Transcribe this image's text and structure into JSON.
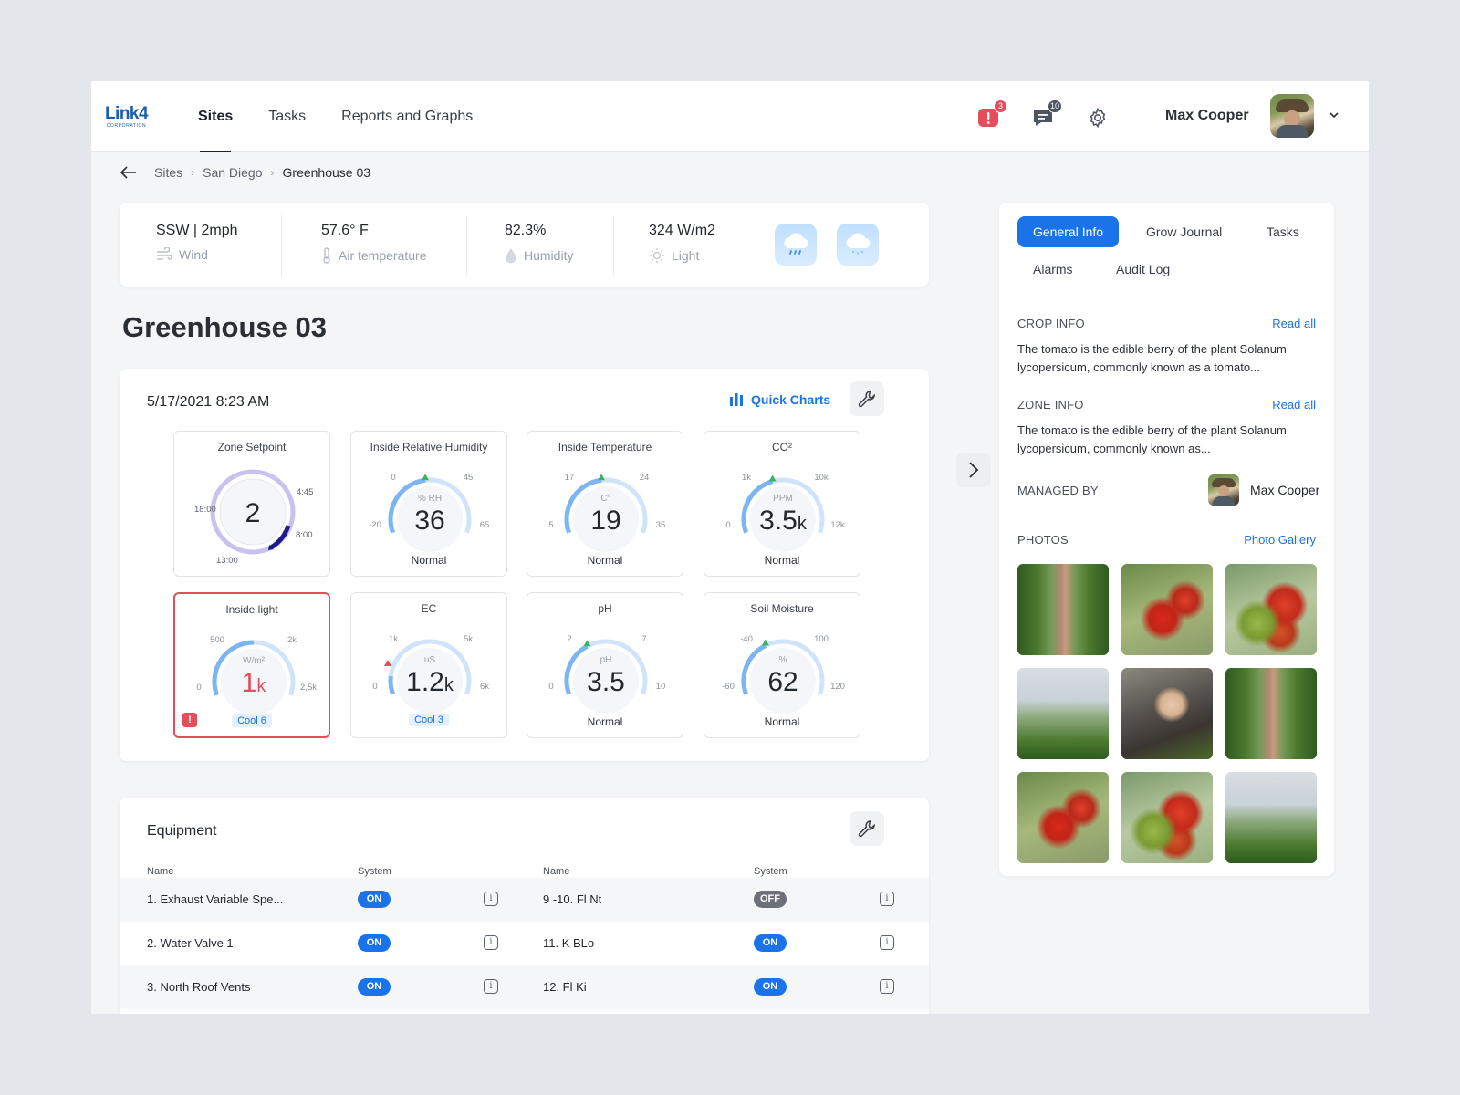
{
  "app": {
    "logo": {
      "main": "Link4",
      "sub": "CORPORATION"
    },
    "nav": [
      {
        "label": "Sites",
        "active": true
      },
      {
        "label": "Tasks",
        "active": false
      },
      {
        "label": "Reports and Graphs",
        "active": false
      }
    ],
    "alerts_badge": "3",
    "messages_badge": "10",
    "user_name": "Max Cooper",
    "accent": "#1a73e8",
    "alert_color": "#e54d5a"
  },
  "breadcrumb": [
    "Sites",
    "San Diego",
    "Greenhouse 03"
  ],
  "weather": [
    {
      "value": "SSW | 2mph",
      "label": "Wind",
      "icon": "wind-icon"
    },
    {
      "value": "57.6° F",
      "label": "Air temperature",
      "icon": "thermometer-icon"
    },
    {
      "value": "82.3%",
      "label": "Humidity",
      "icon": "droplet-icon"
    },
    {
      "value": "324 W/m2",
      "label": "Light",
      "icon": "sun-icon"
    }
  ],
  "page_title": "Greenhouse 03",
  "metrics": {
    "datetime": "5/17/2021 8:23 AM",
    "quick_charts": "Quick Charts",
    "zone": {
      "title": "Zone Setpoint",
      "value": "2",
      "times": [
        "18:00",
        "4:45",
        "8:00",
        "13:00"
      ]
    },
    "gauges": [
      {
        "title": "Inside Relative Humidity",
        "unit": "% RH",
        "value": "36",
        "suffix": "",
        "min": "-20",
        "low": "0",
        "high": "45",
        "max": "65",
        "status": "Normal",
        "alert": false,
        "chip": false,
        "frac": 0.47,
        "marker": "green"
      },
      {
        "title": "Inside Temperature",
        "unit": "C°",
        "value": "19",
        "suffix": "",
        "min": "5",
        "low": "17",
        "high": "24",
        "max": "35",
        "status": "Normal",
        "alert": false,
        "chip": false,
        "frac": 0.47,
        "marker": "green"
      },
      {
        "title": "CO²",
        "unit": "PPM",
        "value": "3.5",
        "suffix": "k",
        "min": "0",
        "low": "1k",
        "high": "10k",
        "max": "12k",
        "status": "Normal",
        "alert": false,
        "chip": false,
        "frac": 0.43,
        "marker": "green"
      },
      {
        "title": "Inside light",
        "unit": "W/m²",
        "value": "1",
        "suffix": "k",
        "min": "0",
        "low": "500",
        "high": "2k",
        "max": "2,5k",
        "status": "Cool 6",
        "alert": true,
        "chip": true,
        "frac": 0.5,
        "marker": "none"
      },
      {
        "title": "EC",
        "unit": "uS",
        "value": "1.2",
        "suffix": "k",
        "min": "0",
        "low": "1k",
        "high": "5k",
        "max": "6k",
        "status": "Cool 3",
        "alert": false,
        "chip": true,
        "frac": 0.12,
        "marker": "red"
      },
      {
        "title": "pH",
        "unit": "pH",
        "value": "3.5",
        "suffix": "",
        "min": "0",
        "low": "2",
        "high": "7",
        "max": "10",
        "status": "Normal",
        "alert": false,
        "chip": false,
        "frac": 0.37,
        "marker": "green"
      },
      {
        "title": "Soil Moisture",
        "unit": "%",
        "value": "62",
        "suffix": "",
        "min": "-60",
        "low": "-40",
        "high": "100",
        "max": "120",
        "status": "Normal",
        "alert": false,
        "chip": false,
        "frac": 0.38,
        "marker": "green"
      }
    ]
  },
  "equipment": {
    "title": "Equipment",
    "headers": {
      "name": "Name",
      "system": "System"
    },
    "rows": [
      {
        "left": {
          "name": "1. Exhaust Variable Spe...",
          "state": "ON"
        },
        "right": {
          "name": "9 -10. Fl Nt",
          "state": "OFF"
        }
      },
      {
        "left": {
          "name": "2. Water Valve 1",
          "state": "ON"
        },
        "right": {
          "name": "11. K BLo",
          "state": "ON"
        }
      },
      {
        "left": {
          "name": "3. North Roof Vents",
          "state": "ON"
        },
        "right": {
          "name": "12. Fl Ki",
          "state": "ON"
        }
      }
    ]
  },
  "side": {
    "tabs": [
      "General Info",
      "Grow Journal",
      "Tasks",
      "Alarms",
      "Audit Log"
    ],
    "crop_head": "CROP INFO",
    "crop_link": "Read all",
    "crop_text": "The tomato is the edible berry of the plant Solanum lycopersicum, commonly known as a tomato...",
    "zone_head": "ZONE INFO",
    "zone_link": "Read all",
    "zone_text": "The tomato is the edible berry of the plant Solanum lycopersicum, commonly known as...",
    "managed_head": "MANAGED BY",
    "managed_name": "Max Cooper",
    "photos_head": "PHOTOS",
    "photos_link": "Photo Gallery"
  }
}
